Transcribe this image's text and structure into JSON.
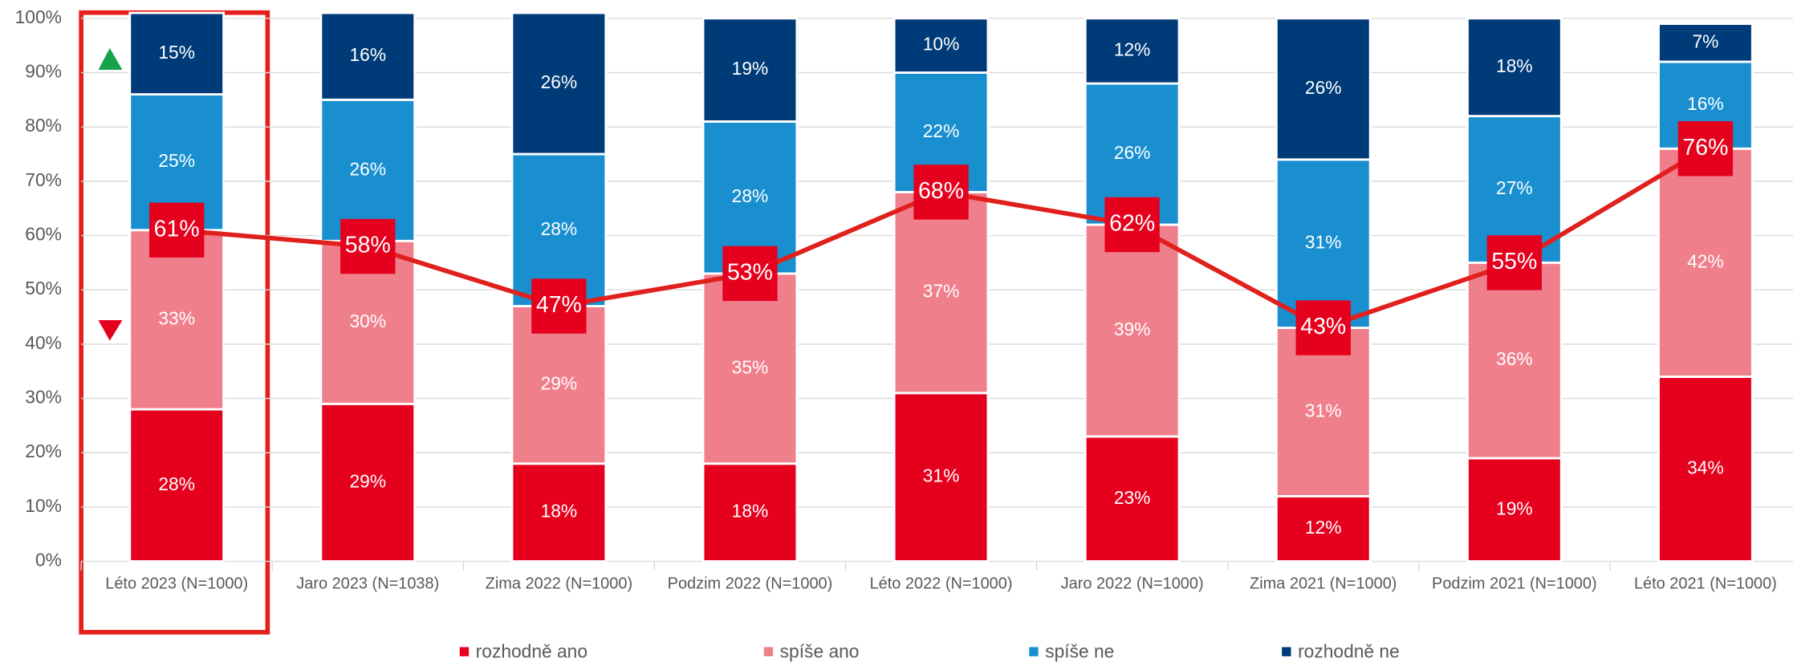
{
  "chart_data": {
    "type": "bar",
    "categories": [
      "Léto 2023 (N=1000)",
      "Jaro 2023 (N=1038)",
      "Zima 2022 (N=1000)",
      "Podzim 2022 (N=1000)",
      "Léto 2022 (N=1000)",
      "Jaro 2022 (N=1000)",
      "Zima 2021 (N=1000)",
      "Podzim 2021 (N=1000)",
      "Léto 2021 (N=1000)"
    ],
    "series": [
      {
        "name": "rozhodně ano",
        "color": "#e5001e",
        "values": [
          28,
          29,
          18,
          18,
          31,
          23,
          12,
          19,
          34
        ],
        "value_labels": [
          "28%",
          "29%",
          "18%",
          "18%",
          "31%",
          "23%",
          "12%",
          "19%",
          "34%"
        ]
      },
      {
        "name": "spíše ano",
        "color": "#f07f8c",
        "values": [
          33,
          30,
          29,
          35,
          37,
          39,
          31,
          36,
          42
        ],
        "value_labels": [
          "33%",
          "30%",
          "29%",
          "35%",
          "37%",
          "39%",
          "31%",
          "36%",
          "42%"
        ]
      },
      {
        "name": "spíše ne",
        "color": "#1a8fd0",
        "values": [
          25,
          26,
          28,
          28,
          22,
          26,
          31,
          27,
          16
        ],
        "value_labels": [
          "25%",
          "26%",
          "28%",
          "28%",
          "22%",
          "26%",
          "31%",
          "27%",
          "16%"
        ]
      },
      {
        "name": "rozhodně ne",
        "color": "#003b79",
        "values": [
          15,
          16,
          26,
          19,
          10,
          12,
          26,
          18,
          7
        ],
        "value_labels": [
          "15%",
          "16%",
          "26%",
          "19%",
          "10%",
          "12%",
          "26%",
          "18%",
          "7%"
        ]
      }
    ],
    "line": {
      "color": "#e0201c",
      "values": [
        61,
        58,
        47,
        53,
        68,
        62,
        43,
        55,
        76
      ],
      "value_labels": [
        "61%",
        "58%",
        "47%",
        "53%",
        "68%",
        "62%",
        "43%",
        "55%",
        "76%"
      ]
    },
    "stacked": true,
    "ylim": [
      0,
      100
    ],
    "yticks": [
      {
        "value": 0,
        "label": "0%"
      },
      {
        "value": 10,
        "label": "10%"
      },
      {
        "value": 20,
        "label": "20%"
      },
      {
        "value": 30,
        "label": "30%"
      },
      {
        "value": 40,
        "label": "40%"
      },
      {
        "value": 50,
        "label": "50%"
      },
      {
        "value": 60,
        "label": "60%"
      },
      {
        "value": 70,
        "label": "70%"
      },
      {
        "value": 80,
        "label": "80%"
      },
      {
        "value": 90,
        "label": "90%"
      },
      {
        "value": 100,
        "label": "100%"
      }
    ],
    "grid": true,
    "legend": "bottom"
  }
}
